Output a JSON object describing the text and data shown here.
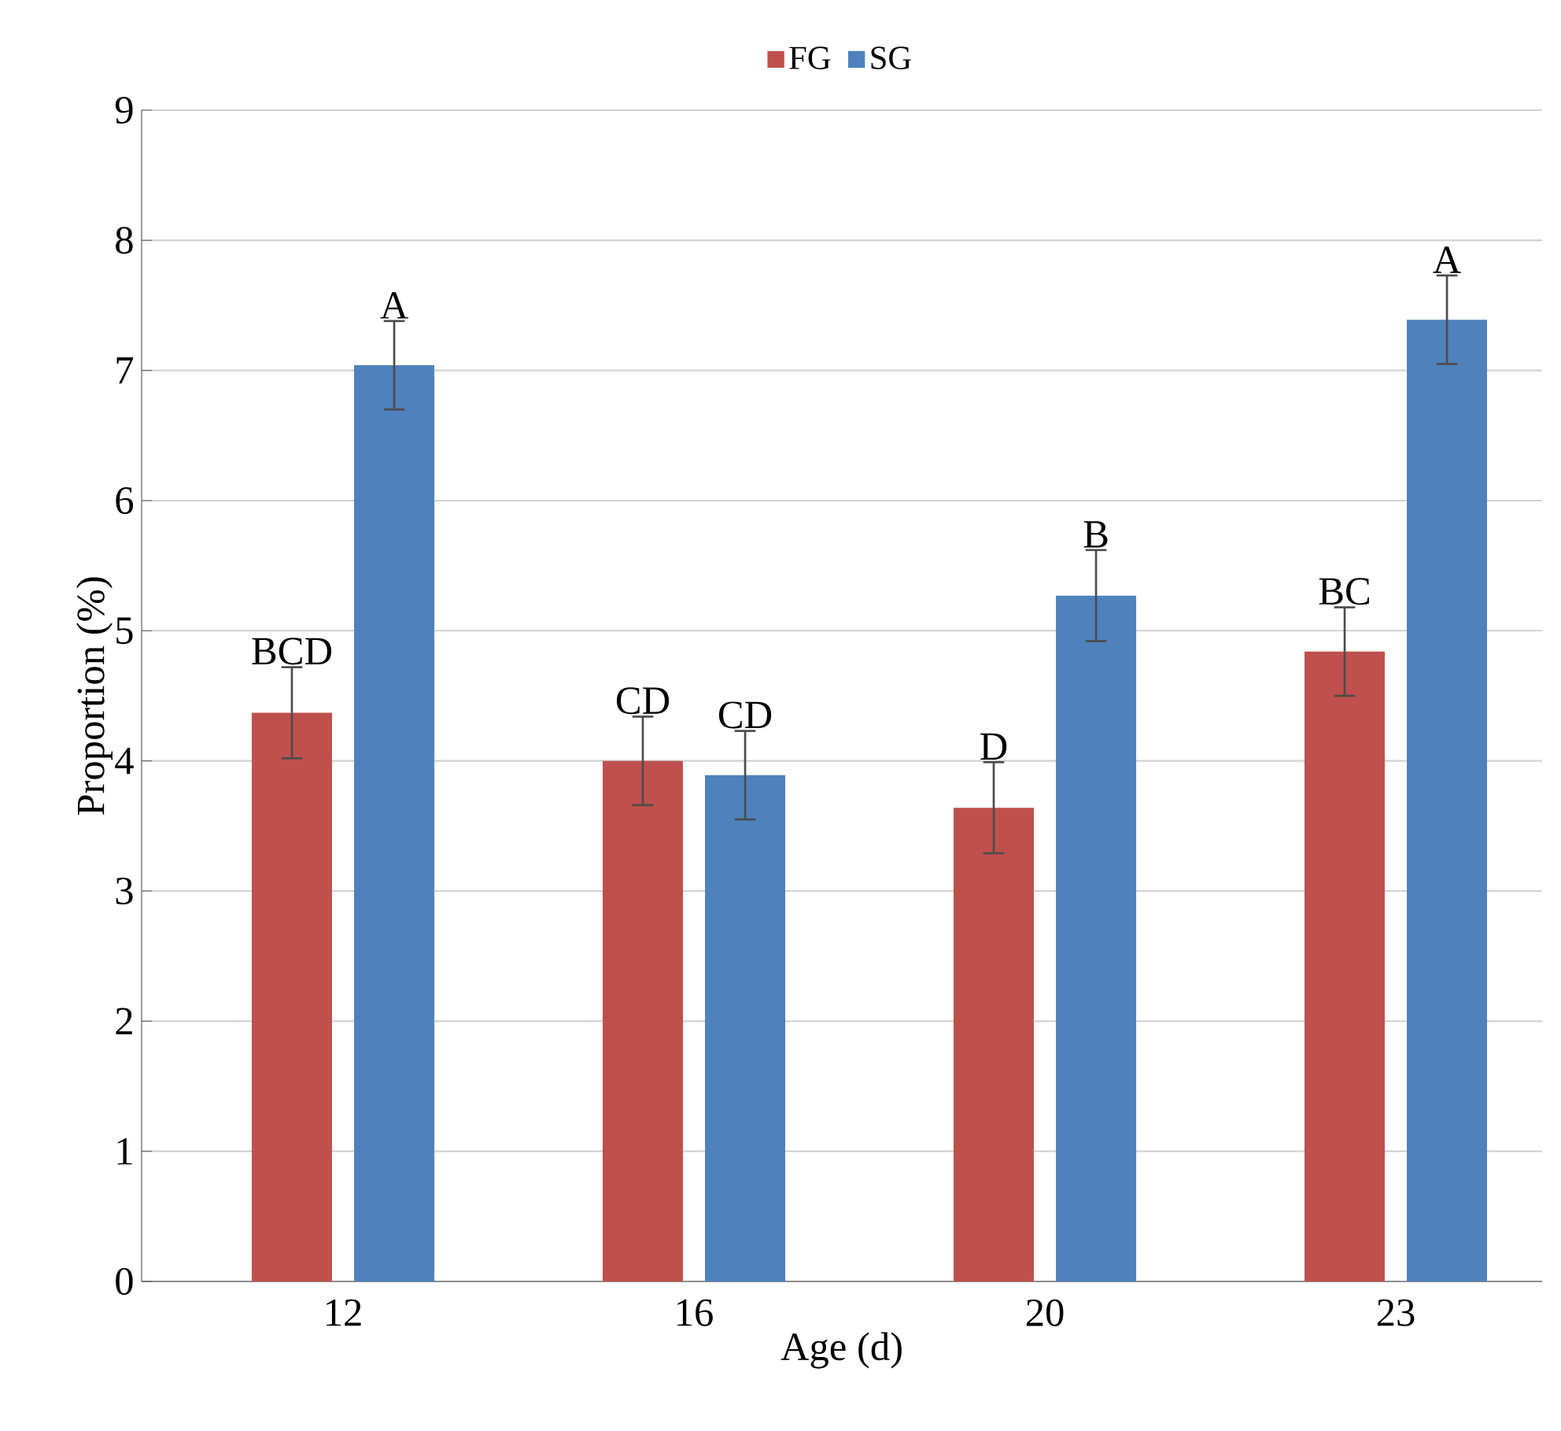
{
  "chart_data": {
    "type": "bar",
    "xlabel": "Age (d)",
    "ylabel": "Proportion (%)",
    "categories": [
      "12",
      "16",
      "20",
      "23"
    ],
    "series": [
      {
        "name": "FG",
        "color": "#c0504d",
        "values": [
          4.37,
          4.0,
          3.64,
          4.84
        ],
        "errors": [
          0.35,
          0.34,
          0.35,
          0.34
        ],
        "value_labels": [
          "BCD",
          "CD",
          "D",
          "BC"
        ]
      },
      {
        "name": "SG",
        "color": "#4f81bd",
        "values": [
          7.04,
          3.89,
          5.27,
          7.39
        ],
        "errors": [
          0.34,
          0.34,
          0.35,
          0.34
        ],
        "value_labels": [
          "A",
          "CD",
          "B",
          "A"
        ]
      }
    ],
    "ylim": [
      0,
      9
    ],
    "yticks": [
      0,
      1,
      2,
      3,
      4,
      5,
      6,
      7,
      8,
      9
    ],
    "grid": "y",
    "legend": "top"
  }
}
